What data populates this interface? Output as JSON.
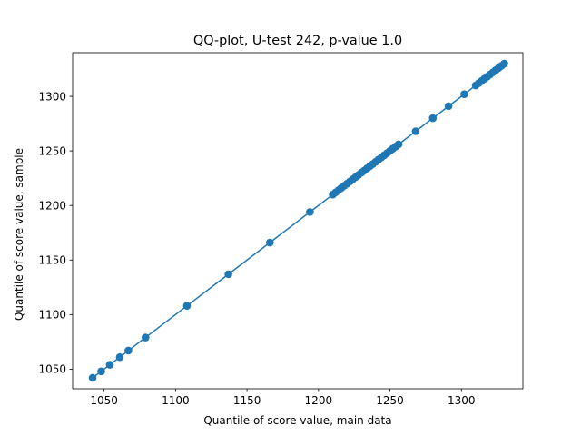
{
  "chart_data": {
    "type": "scatter",
    "title": "QQ-plot, U-test 242, p-value 1.0",
    "xlabel": "Quantile of score value, main data",
    "ylabel": "Quantile of score value, sample",
    "xlim": [
      1028,
      1343
    ],
    "ylim": [
      1032,
      1340
    ],
    "xticks": [
      1050,
      1100,
      1150,
      1200,
      1250,
      1300
    ],
    "yticks": [
      1050,
      1100,
      1150,
      1200,
      1250,
      1300
    ],
    "grid": false,
    "series": [
      {
        "color": "#1f77b4",
        "marker": "circle",
        "connected": true,
        "x": [
          1042,
          1048,
          1054,
          1061,
          1067,
          1079,
          1108,
          1137,
          1166,
          1194,
          1210,
          1212,
          1214,
          1216,
          1218,
          1220,
          1222,
          1224,
          1226,
          1228,
          1230,
          1232,
          1234,
          1236,
          1238,
          1240,
          1242,
          1244,
          1246,
          1248,
          1250,
          1252,
          1254,
          1256,
          1268,
          1280,
          1291,
          1302,
          1310,
          1312,
          1314,
          1316,
          1318,
          1320,
          1322,
          1324,
          1326,
          1328,
          1330
        ],
        "y": [
          1042,
          1048,
          1054,
          1061,
          1067,
          1079,
          1108,
          1137,
          1166,
          1194,
          1210,
          1212,
          1214,
          1216,
          1218,
          1220,
          1222,
          1224,
          1226,
          1228,
          1230,
          1232,
          1234,
          1236,
          1238,
          1240,
          1242,
          1244,
          1246,
          1248,
          1250,
          1252,
          1254,
          1256,
          1268,
          1280,
          1291,
          1302,
          1310,
          1312,
          1314,
          1316,
          1318,
          1320,
          1322,
          1324,
          1326,
          1328,
          1330
        ]
      }
    ]
  }
}
